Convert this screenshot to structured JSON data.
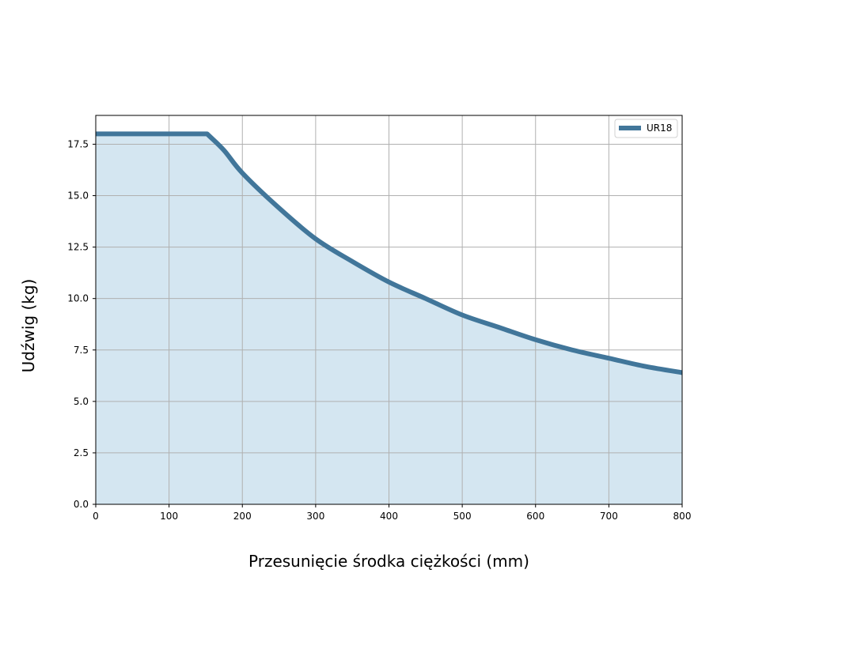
{
  "chart_data": {
    "type": "area",
    "title": "",
    "xlabel": "Przesunięcie środka ciężkości (mm)",
    "ylabel": "Udźwig (kg)",
    "xlim": [
      0,
      800
    ],
    "ylim": [
      0,
      18.9
    ],
    "xticks": [
      0,
      100,
      200,
      300,
      400,
      500,
      600,
      700,
      800
    ],
    "xtick_labels": [
      "0",
      "100",
      "200",
      "300",
      "400",
      "500",
      "600",
      "700",
      "800"
    ],
    "yticks": [
      0,
      2.5,
      5,
      7.5,
      10,
      12.5,
      15,
      17.5
    ],
    "ytick_labels": [
      "0.0",
      "2.5",
      "5.0",
      "7.5",
      "10.0",
      "12.5",
      "15.0",
      "17.5"
    ],
    "grid": true,
    "legend_position": "top-right",
    "series": [
      {
        "name": "UR18",
        "color": "#41769a",
        "fill_color": "#d4e6f1",
        "x": [
          0,
          152,
          175,
          200,
          250,
          300,
          350,
          400,
          450,
          500,
          550,
          600,
          650,
          700,
          750,
          800
        ],
        "y": [
          18,
          18,
          17.2,
          16.1,
          14.4,
          12.9,
          11.8,
          10.8,
          10.0,
          9.2,
          8.6,
          8.0,
          7.5,
          7.1,
          6.7,
          6.4
        ]
      }
    ]
  }
}
